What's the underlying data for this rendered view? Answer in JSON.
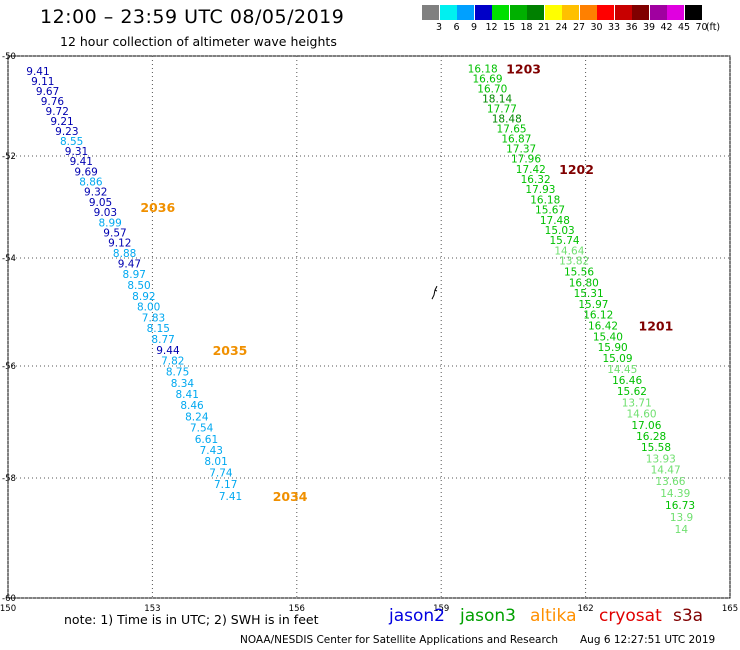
{
  "header": {
    "title": "12:00 – 23:59 UTC 08/05/2019",
    "subtitle": "12 hour collection of altimeter wave heights"
  },
  "legend": {
    "unit": "(ft)",
    "bins": [
      {
        "label": "3",
        "color": "#808080"
      },
      {
        "label": "6",
        "color": "#00f0f0"
      },
      {
        "label": "9",
        "color": "#00a0ff"
      },
      {
        "label": "12",
        "color": "#0000c8"
      },
      {
        "label": "15",
        "color": "#00e000"
      },
      {
        "label": "18",
        "color": "#00b000"
      },
      {
        "label": "21",
        "color": "#008000"
      },
      {
        "label": "24",
        "color": "#ffff00"
      },
      {
        "label": "27",
        "color": "#ffc000"
      },
      {
        "label": "30",
        "color": "#ff8000"
      },
      {
        "label": "33",
        "color": "#ff0000"
      },
      {
        "label": "36",
        "color": "#c80000"
      },
      {
        "label": "39",
        "color": "#800000"
      },
      {
        "label": "42",
        "color": "#a000a0"
      },
      {
        "label": "45",
        "color": "#e000e0"
      },
      {
        "label": "70",
        "color": "#000000"
      }
    ]
  },
  "axes": {
    "lat_labels": [
      "-50",
      "-52",
      "-54",
      "-56",
      "-58",
      "-60"
    ],
    "lon_labels": [
      "150",
      "153",
      "156",
      "159",
      "162",
      "165"
    ]
  },
  "tracks": [
    {
      "name": "west-track",
      "readings": [
        {
          "lat": -50.3,
          "lon": 150.38,
          "v": "9.41",
          "c": "#0000b0"
        },
        {
          "lat": -50.5,
          "lon": 150.48,
          "v": "9.11",
          "c": "#0000b0"
        },
        {
          "lat": -50.7,
          "lon": 150.58,
          "v": "9.67",
          "c": "#0000b0"
        },
        {
          "lat": -50.9,
          "lon": 150.68,
          "v": "9.76",
          "c": "#0000b0"
        },
        {
          "lat": -51.1,
          "lon": 150.78,
          "v": "9.72",
          "c": "#0000b0"
        },
        {
          "lat": -51.3,
          "lon": 150.88,
          "v": "9.21",
          "c": "#0000b0"
        },
        {
          "lat": -51.5,
          "lon": 150.98,
          "v": "9.23",
          "c": "#0000b0"
        },
        {
          "lat": -51.7,
          "lon": 151.08,
          "v": "8.55",
          "c": "#00a8f0"
        },
        {
          "lat": -51.9,
          "lon": 151.18,
          "v": "9.31",
          "c": "#0000b0"
        },
        {
          "lat": -52.1,
          "lon": 151.28,
          "v": "9.41",
          "c": "#0000b0"
        },
        {
          "lat": -52.3,
          "lon": 151.38,
          "v": "9.69",
          "c": "#0000b0"
        },
        {
          "lat": -52.5,
          "lon": 151.48,
          "v": "8.86",
          "c": "#00a8f0"
        },
        {
          "lat": -52.7,
          "lon": 151.58,
          "v": "9.32",
          "c": "#0000b0"
        },
        {
          "lat": -52.9,
          "lon": 151.68,
          "v": "9.05",
          "c": "#0000b0"
        },
        {
          "lat": -53.1,
          "lon": 151.78,
          "v": "9.03",
          "c": "#0000b0"
        },
        {
          "lat": -53.3,
          "lon": 151.88,
          "v": "8.99",
          "c": "#00a8f0"
        },
        {
          "lat": -53.5,
          "lon": 151.98,
          "v": "9.57",
          "c": "#0000b0"
        },
        {
          "lat": -53.7,
          "lon": 152.08,
          "v": "9.12",
          "c": "#0000b0"
        },
        {
          "lat": -53.9,
          "lon": 152.18,
          "v": "8.88",
          "c": "#00a8f0"
        },
        {
          "lat": -54.1,
          "lon": 152.28,
          "v": "9.47",
          "c": "#0000b0"
        },
        {
          "lat": -54.3,
          "lon": 152.38,
          "v": "8.97",
          "c": "#00a8f0"
        },
        {
          "lat": -54.5,
          "lon": 152.48,
          "v": "8.50",
          "c": "#00a8f0"
        },
        {
          "lat": -54.7,
          "lon": 152.58,
          "v": "8.92",
          "c": "#00a8f0"
        },
        {
          "lat": -54.9,
          "lon": 152.68,
          "v": "8.00",
          "c": "#00a8f0"
        },
        {
          "lat": -55.1,
          "lon": 152.78,
          "v": "7.83",
          "c": "#00a8f0"
        },
        {
          "lat": -55.3,
          "lon": 152.88,
          "v": "8.15",
          "c": "#00a8f0"
        },
        {
          "lat": -55.5,
          "lon": 152.98,
          "v": "8.77",
          "c": "#00a8f0"
        },
        {
          "lat": -55.7,
          "lon": 153.08,
          "v": "9.44",
          "c": "#0000b0"
        },
        {
          "lat": -55.9,
          "lon": 153.18,
          "v": "7.82",
          "c": "#00a8f0"
        },
        {
          "lat": -56.1,
          "lon": 153.28,
          "v": "8.75",
          "c": "#00a8f0"
        },
        {
          "lat": -56.3,
          "lon": 153.38,
          "v": "8.34",
          "c": "#00a8f0"
        },
        {
          "lat": -56.5,
          "lon": 153.48,
          "v": "8.41",
          "c": "#00a8f0"
        },
        {
          "lat": -56.7,
          "lon": 153.58,
          "v": "8.46",
          "c": "#00a8f0"
        },
        {
          "lat": -56.9,
          "lon": 153.68,
          "v": "8.24",
          "c": "#00a8f0"
        },
        {
          "lat": -57.1,
          "lon": 153.78,
          "v": "7.54",
          "c": "#00a8f0"
        },
        {
          "lat": -57.3,
          "lon": 153.88,
          "v": "6.61",
          "c": "#00a8f0"
        },
        {
          "lat": -57.5,
          "lon": 153.98,
          "v": "7.43",
          "c": "#00a8f0"
        },
        {
          "lat": -57.7,
          "lon": 154.08,
          "v": "8.01",
          "c": "#00a8f0"
        },
        {
          "lat": -57.9,
          "lon": 154.18,
          "v": "7.74",
          "c": "#00a8f0"
        },
        {
          "lat": -58.1,
          "lon": 154.28,
          "v": "7.17",
          "c": "#00a8f0"
        },
        {
          "lat": -58.3,
          "lon": 154.38,
          "v": "7.41",
          "c": "#00a8f0"
        }
      ]
    },
    {
      "name": "east-track",
      "readings": [
        {
          "lat": -50.25,
          "lon": 159.55,
          "v": "16.18",
          "c": "#00c000"
        },
        {
          "lat": -50.45,
          "lon": 159.65,
          "v": "16.69",
          "c": "#00c000"
        },
        {
          "lat": -50.65,
          "lon": 159.75,
          "v": "16.70",
          "c": "#00c000"
        },
        {
          "lat": -50.85,
          "lon": 159.85,
          "v": "18.14",
          "c": "#008800"
        },
        {
          "lat": -51.05,
          "lon": 159.95,
          "v": "17.77",
          "c": "#00c000"
        },
        {
          "lat": -51.25,
          "lon": 160.05,
          "v": "18.48",
          "c": "#008800"
        },
        {
          "lat": -51.45,
          "lon": 160.15,
          "v": "17.65",
          "c": "#00c000"
        },
        {
          "lat": -51.65,
          "lon": 160.25,
          "v": "16.87",
          "c": "#00c000"
        },
        {
          "lat": -51.85,
          "lon": 160.35,
          "v": "17.37",
          "c": "#00c000"
        },
        {
          "lat": -52.05,
          "lon": 160.45,
          "v": "17.96",
          "c": "#00c000"
        },
        {
          "lat": -52.25,
          "lon": 160.55,
          "v": "17.42",
          "c": "#00c000"
        },
        {
          "lat": -52.45,
          "lon": 160.65,
          "v": "16.32",
          "c": "#00c000"
        },
        {
          "lat": -52.65,
          "lon": 160.75,
          "v": "17.93",
          "c": "#00c000"
        },
        {
          "lat": -52.85,
          "lon": 160.85,
          "v": "16.18",
          "c": "#00c000"
        },
        {
          "lat": -53.05,
          "lon": 160.95,
          "v": "15.67",
          "c": "#00c000"
        },
        {
          "lat": -53.25,
          "lon": 161.05,
          "v": "17.48",
          "c": "#00c000"
        },
        {
          "lat": -53.45,
          "lon": 161.15,
          "v": "15.03",
          "c": "#00c000"
        },
        {
          "lat": -53.65,
          "lon": 161.25,
          "v": "15.74",
          "c": "#00c000"
        },
        {
          "lat": -53.85,
          "lon": 161.35,
          "v": "14.64",
          "c": "#70e070"
        },
        {
          "lat": -54.05,
          "lon": 161.45,
          "v": "13.82",
          "c": "#70e070"
        },
        {
          "lat": -54.25,
          "lon": 161.55,
          "v": "15.56",
          "c": "#00c000"
        },
        {
          "lat": -54.45,
          "lon": 161.65,
          "v": "16.80",
          "c": "#00c000"
        },
        {
          "lat": -54.65,
          "lon": 161.75,
          "v": "15.31",
          "c": "#00c000"
        },
        {
          "lat": -54.85,
          "lon": 161.85,
          "v": "15.97",
          "c": "#00c000"
        },
        {
          "lat": -55.05,
          "lon": 161.95,
          "v": "16.12",
          "c": "#00c000"
        },
        {
          "lat": -55.25,
          "lon": 162.05,
          "v": "16.42",
          "c": "#00c000"
        },
        {
          "lat": -55.45,
          "lon": 162.15,
          "v": "15.40",
          "c": "#00c000"
        },
        {
          "lat": -55.65,
          "lon": 162.25,
          "v": "15.90",
          "c": "#00c000"
        },
        {
          "lat": -55.85,
          "lon": 162.35,
          "v": "15.09",
          "c": "#00c000"
        },
        {
          "lat": -56.05,
          "lon": 162.45,
          "v": "14.45",
          "c": "#70e070"
        },
        {
          "lat": -56.25,
          "lon": 162.55,
          "v": "16.46",
          "c": "#00c000"
        },
        {
          "lat": -56.45,
          "lon": 162.65,
          "v": "15.62",
          "c": "#00c000"
        },
        {
          "lat": -56.65,
          "lon": 162.75,
          "v": "13.71",
          "c": "#70e070"
        },
        {
          "lat": -56.85,
          "lon": 162.85,
          "v": "14.60",
          "c": "#70e070"
        },
        {
          "lat": -57.05,
          "lon": 162.95,
          "v": "17.06",
          "c": "#00c000"
        },
        {
          "lat": -57.25,
          "lon": 163.05,
          "v": "16.28",
          "c": "#00c000"
        },
        {
          "lat": -57.45,
          "lon": 163.15,
          "v": "15.58",
          "c": "#00c000"
        },
        {
          "lat": -57.65,
          "lon": 163.25,
          "v": "13.93",
          "c": "#70e070"
        },
        {
          "lat": -57.85,
          "lon": 163.35,
          "v": "14.47",
          "c": "#70e070"
        },
        {
          "lat": -58.05,
          "lon": 163.45,
          "v": "13.66",
          "c": "#70e070"
        },
        {
          "lat": -58.25,
          "lon": 163.55,
          "v": "14.39",
          "c": "#70e070"
        },
        {
          "lat": -58.45,
          "lon": 163.65,
          "v": "16.73",
          "c": "#00c000"
        },
        {
          "lat": -58.65,
          "lon": 163.75,
          "v": "13.9",
          "c": "#70e070"
        },
        {
          "lat": -58.85,
          "lon": 163.85,
          "v": "14",
          "c": "#70e070"
        }
      ]
    }
  ],
  "time_markers": [
    {
      "label": "1203",
      "lat": -50.25,
      "lon": 160.35,
      "color": "#800000"
    },
    {
      "label": "1202",
      "lat": -52.25,
      "lon": 161.45,
      "color": "#800000"
    },
    {
      "label": "1201",
      "lat": -55.25,
      "lon": 163.1,
      "color": "#800000"
    },
    {
      "label": "2036",
      "lat": -53.0,
      "lon": 152.75,
      "color": "#f09000"
    },
    {
      "label": "2035",
      "lat": -55.7,
      "lon": 154.25,
      "color": "#f09000"
    },
    {
      "label": "2034",
      "lat": -58.3,
      "lon": 155.5,
      "color": "#f09000"
    }
  ],
  "footer": {
    "note": "note:  1) Time is in UTC;  2) SWH is in feet",
    "satellites": [
      {
        "label": "jason2",
        "color": "#0000e0"
      },
      {
        "label": "jason3",
        "color": "#00a000"
      },
      {
        "label": "altika",
        "color": "#ff9000"
      },
      {
        "label": "cryosat",
        "color": "#e00000"
      },
      {
        "label": "s3a",
        "color": "#800000"
      }
    ],
    "credit": "NOAA/NESDIS Center for Satellite Applications and Research",
    "timestamp": "Aug  6 12:27:51 UTC 2019"
  }
}
